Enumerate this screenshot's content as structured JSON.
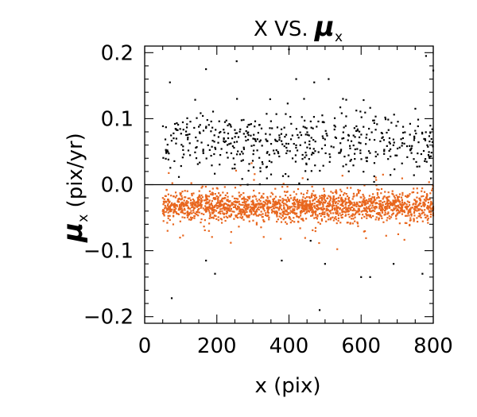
{
  "chart_data": {
    "type": "scatter",
    "title": "X VS. ",
    "title_symbol": "μ",
    "title_subscript": "x",
    "xlabel": "x (pix)",
    "ylabel_symbol": "μ",
    "ylabel_subscript": "x",
    "ylabel_unit": " (pix/yr)",
    "xlim": [
      0,
      800
    ],
    "ylim": [
      -0.21,
      0.21
    ],
    "xticks": [
      0,
      200,
      400,
      600,
      800
    ],
    "xtick_labels": [
      "0",
      "200",
      "400",
      "600",
      "800"
    ],
    "yticks": [
      -0.2,
      -0.1,
      0.0,
      0.1,
      0.2
    ],
    "ytick_labels": [
      "−0.2",
      "−0.1",
      "0.0",
      "0.1",
      "0.2"
    ],
    "reference_line_y": 0.0,
    "grid": false,
    "series": [
      {
        "color": "#000000",
        "approx_points": 520,
        "x_range": [
          50,
          800
        ],
        "y_center": 0.065,
        "y_spread": 0.025,
        "outliers": [
          [
            75,
            -0.172
          ],
          [
            70,
            0.155
          ],
          [
            170,
            0.175
          ],
          [
            255,
            0.187
          ],
          [
            400,
            0.205
          ],
          [
            420,
            0.16
          ],
          [
            470,
            0.155
          ],
          [
            510,
            0.16
          ],
          [
            780,
            0.195
          ],
          [
            800,
            0.173
          ],
          [
            170,
            -0.115
          ],
          [
            195,
            -0.135
          ],
          [
            380,
            -0.115
          ],
          [
            485,
            -0.19
          ],
          [
            500,
            -0.12
          ],
          [
            600,
            -0.14
          ],
          [
            625,
            -0.14
          ],
          [
            690,
            -0.12
          ],
          [
            770,
            -0.135
          ],
          [
            460,
            -0.085
          ]
        ]
      },
      {
        "color": "#e8661e",
        "approx_points": 1900,
        "x_range": [
          50,
          800
        ],
        "y_center": -0.033,
        "y_spread": 0.011
      }
    ]
  }
}
